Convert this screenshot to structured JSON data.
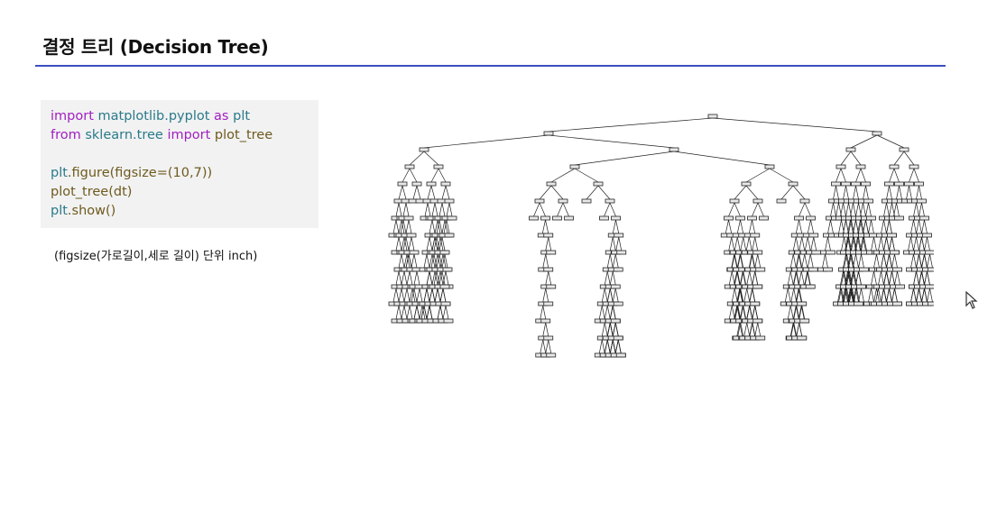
{
  "slide": {
    "title": "결정 트리 (Decision Tree)",
    "caption": "(figsize(가로길이,세로 길이) 단위 inch)"
  },
  "code": {
    "lines": [
      [
        {
          "t": "import",
          "k": "kw"
        },
        {
          "t": " matplotlib.pyplot ",
          "k": "mod"
        },
        {
          "t": "as",
          "k": "kw"
        },
        {
          "t": " plt",
          "k": "mod"
        }
      ],
      [
        {
          "t": "from",
          "k": "kw"
        },
        {
          "t": " sklearn.tree ",
          "k": "mod"
        },
        {
          "t": "import",
          "k": "kw"
        },
        {
          "t": " plot_tree",
          "k": "fn"
        }
      ],
      [],
      [
        {
          "t": "plt",
          "k": "mod"
        },
        {
          "t": ".figure(figsize=(10,7))",
          "k": "fn"
        }
      ],
      [
        {
          "t": "plot_tree(dt)",
          "k": "fn"
        }
      ],
      [
        {
          "t": "plt",
          "k": "mod"
        },
        {
          "t": ".show()",
          "k": "fn"
        }
      ]
    ]
  },
  "colors": {
    "title_rule": "#3d4fc0",
    "code_bg": "#f2f2f2",
    "keyword": "#a020c0",
    "module": "#2a7a8a",
    "function": "#6e5a1e"
  },
  "icons": {
    "cursor": "mouse-pointer-icon"
  }
}
